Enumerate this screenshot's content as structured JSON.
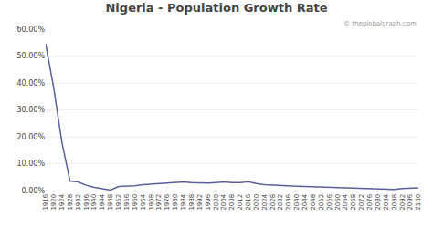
{
  "chart_data": {
    "type": "line",
    "title": "Nigeria - Population Growth Rate",
    "annotations": [
      "© theglobalgraph.com"
    ],
    "color": "#5a5e9a",
    "x": [
      1916,
      1920,
      1924,
      1928,
      1932,
      1936,
      1940,
      1944,
      1948,
      1952,
      1956,
      1960,
      1964,
      1968,
      1972,
      1976,
      1980,
      1984,
      1988,
      1992,
      1996,
      2000,
      2004,
      2008,
      2012,
      2016,
      2020,
      2024,
      2028,
      2032,
      2036,
      2040,
      2044,
      2048,
      2052,
      2056,
      2060,
      2064,
      2068,
      2072,
      2076,
      2080,
      2084,
      2088,
      2092,
      2096,
      2100
    ],
    "values": [
      0.545,
      0.38,
      0.18,
      0.035,
      0.032,
      0.02,
      0.012,
      0.006,
      0.002,
      0.015,
      0.016,
      0.018,
      0.022,
      0.024,
      0.026,
      0.03,
      0.032,
      0.032,
      0.03,
      0.028,
      0.028,
      0.03,
      0.032,
      0.03,
      0.03,
      0.033,
      0.026,
      0.022,
      0.02,
      0.018,
      0.017,
      0.016,
      0.015,
      0.014,
      0.013,
      0.013,
      0.012,
      0.011,
      0.01,
      0.009,
      0.008,
      0.007,
      0.005,
      0.004,
      0.008,
      0.01,
      0.01
    ],
    "xlim": [
      1916,
      2100
    ],
    "xticks": [
      1916,
      1920,
      1924,
      1928,
      1932,
      1936,
      1940,
      1944,
      1948,
      1952,
      1956,
      1960,
      1964,
      1968,
      1972,
      1976,
      1980,
      1984,
      1988,
      1992,
      1996,
      2000,
      2004,
      2008,
      2012,
      2016,
      2020,
      2024,
      2028,
      2032,
      2036,
      2040,
      2044,
      2048,
      2052,
      2056,
      2060,
      2064,
      2068,
      2072,
      2076,
      2080,
      2084,
      2088,
      2092,
      2096,
      2100
    ],
    "ylim": [
      0.0,
      0.6
    ],
    "yticks": [
      {
        "value": 0.0,
        "label": "0.00%"
      },
      {
        "value": 0.1,
        "label": "10.00%"
      },
      {
        "value": 0.2,
        "label": "20.00%"
      },
      {
        "value": 0.3,
        "label": "30.00%"
      },
      {
        "value": 0.4,
        "label": "40.00%"
      },
      {
        "value": 0.5,
        "label": "50.00%"
      },
      {
        "value": 0.6,
        "label": "60.00%"
      }
    ],
    "grid": true
  }
}
